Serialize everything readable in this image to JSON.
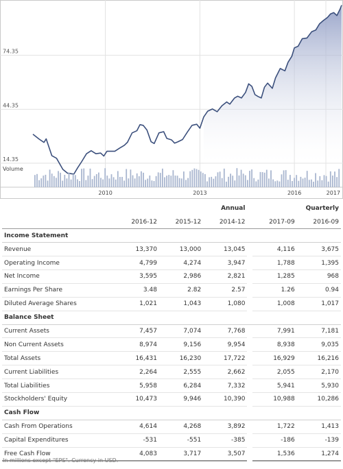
{
  "chart_data": {
    "type": "line",
    "price_axis": {
      "ticks": [
        "74.35",
        "44.35",
        "14.35"
      ],
      "tick_values": [
        74.35,
        44.35,
        14.35
      ],
      "ylim": [
        14.35,
        104.35
      ]
    },
    "x_ticks": [
      {
        "label": "2010",
        "x": 2010
      },
      {
        "label": "2013",
        "x": 2013
      },
      {
        "label": "2016",
        "x": 2016
      },
      {
        "label": "2017",
        "x": 2017
      }
    ],
    "x_range": [
      2007.7,
      2017.5
    ],
    "volume_label": "Volume",
    "grid": true,
    "price": {
      "x": [
        2007.7,
        2007.9,
        2008.05,
        2008.12,
        2008.3,
        2008.45,
        2008.65,
        2008.8,
        2009.0,
        2009.12,
        2009.25,
        2009.4,
        2009.55,
        2009.7,
        2009.85,
        2009.95,
        2010.05,
        2010.15,
        2010.3,
        2010.45,
        2010.6,
        2010.7,
        2010.85,
        2011.0,
        2011.1,
        2011.2,
        2011.32,
        2011.45,
        2011.55,
        2011.7,
        2011.85,
        2011.95,
        2012.1,
        2012.2,
        2012.3,
        2012.45,
        2012.6,
        2012.75,
        2012.9,
        2013.0,
        2013.12,
        2013.25,
        2013.4,
        2013.55,
        2013.7,
        2013.85,
        2013.95,
        2014.1,
        2014.2,
        2014.32,
        2014.45,
        2014.55,
        2014.65,
        2014.75,
        2014.85,
        2014.95,
        2015.05,
        2015.15,
        2015.3,
        2015.4,
        2015.55,
        2015.7,
        2015.8,
        2015.92,
        2016.0,
        2016.12,
        2016.25,
        2016.4,
        2016.55,
        2016.68,
        2016.8,
        2016.92,
        2017.05,
        2017.15,
        2017.25,
        2017.35,
        2017.45,
        2017.5
      ],
      "y": [
        30.5,
        27.7,
        25.9,
        27.9,
        18.5,
        17.1,
        10.9,
        8.8,
        8.3,
        11.8,
        15.3,
        19.6,
        21.3,
        19.6,
        20.0,
        18.3,
        21.0,
        21.0,
        21.0,
        22.7,
        24.3,
        26.0,
        31.2,
        32.4,
        35.8,
        35.4,
        32.8,
        26.3,
        25.3,
        31.2,
        31.9,
        28.1,
        27.3,
        25.5,
        26.2,
        27.5,
        31.6,
        35.4,
        36.0,
        33.8,
        40.0,
        43.3,
        44.5,
        43.0,
        46.3,
        48.4,
        47.2,
        50.6,
        51.6,
        50.6,
        53.7,
        58.5,
        57.1,
        52.5,
        51.4,
        50.6,
        56.6,
        58.9,
        56.0,
        61.8,
        67.0,
        65.7,
        70.5,
        73.8,
        78.5,
        79.4,
        83.6,
        84.0,
        87.5,
        88.4,
        91.9,
        93.7,
        95.4,
        97.4,
        98.1,
        96.5,
        100.0,
        102.2
      ]
    }
  },
  "table": {
    "group_annual": "Annual",
    "group_quarterly": "Quarterly",
    "annual_periods": [
      "2016-12",
      "2015-12",
      "2014-12"
    ],
    "quarterly_periods": [
      "2017-09",
      "2016-09"
    ],
    "sections": [
      {
        "title": "Income Statement",
        "rows": [
          {
            "label": "Revenue",
            "annual": [
              "13,370",
              "13,000",
              "13,045"
            ],
            "quarterly": [
              "4,116",
              "3,675"
            ]
          },
          {
            "label": "Operating Income",
            "annual": [
              "4,799",
              "4,274",
              "3,947"
            ],
            "quarterly": [
              "1,788",
              "1,395"
            ]
          },
          {
            "label": "Net Income",
            "annual": [
              "3,595",
              "2,986",
              "2,821"
            ],
            "quarterly": [
              "1,285",
              "968"
            ]
          },
          {
            "label": "Earnings Per Share",
            "annual": [
              "3.48",
              "2.82",
              "2.57"
            ],
            "quarterly": [
              "1.26",
              "0.94"
            ]
          },
          {
            "label": "Diluted Average Shares",
            "annual": [
              "1,021",
              "1,043",
              "1,080"
            ],
            "quarterly": [
              "1,008",
              "1,017"
            ]
          }
        ]
      },
      {
        "title": "Balance Sheet",
        "rows": [
          {
            "label": "Current Assets",
            "annual": [
              "7,457",
              "7,074",
              "7,768"
            ],
            "quarterly": [
              "7,991",
              "7,181"
            ]
          },
          {
            "label": "Non Current Assets",
            "annual": [
              "8,974",
              "9,156",
              "9,954"
            ],
            "quarterly": [
              "8,938",
              "9,035"
            ]
          },
          {
            "label": "Total Assets",
            "annual": [
              "16,431",
              "16,230",
              "17,722"
            ],
            "quarterly": [
              "16,929",
              "16,216"
            ]
          },
          {
            "label": "Current Liabilities",
            "annual": [
              "2,264",
              "2,555",
              "2,662"
            ],
            "quarterly": [
              "2,055",
              "2,170"
            ]
          },
          {
            "label": "Total Liabilities",
            "annual": [
              "5,958",
              "6,284",
              "7,332"
            ],
            "quarterly": [
              "5,941",
              "5,930"
            ]
          },
          {
            "label": "Stockholders' Equity",
            "annual": [
              "10,473",
              "9,946",
              "10,390"
            ],
            "quarterly": [
              "10,988",
              "10,286"
            ]
          }
        ]
      },
      {
        "title": "Cash Flow",
        "rows": [
          {
            "label": "Cash From Operations",
            "annual": [
              "4,614",
              "4,268",
              "3,892"
            ],
            "quarterly": [
              "1,722",
              "1,413"
            ]
          },
          {
            "label": "Capital Expenditures",
            "annual": [
              "-531",
              "-551",
              "-385"
            ],
            "quarterly": [
              "-186",
              "-139"
            ]
          },
          {
            "label": "Free Cash Flow",
            "annual": [
              "4,083",
              "3,717",
              "3,507"
            ],
            "quarterly": [
              "1,536",
              "1,274"
            ]
          }
        ]
      }
    ]
  },
  "footnote": "In millions except \"EPS\". Currency in USD.",
  "colors": {
    "line": "#3b4f7c",
    "volume": "#a9b6cf",
    "grid": "#e2e2e2",
    "frame": "#c8c8c8",
    "fill_top": "#8f9cc4",
    "fill_bottom": "#ffffff"
  }
}
